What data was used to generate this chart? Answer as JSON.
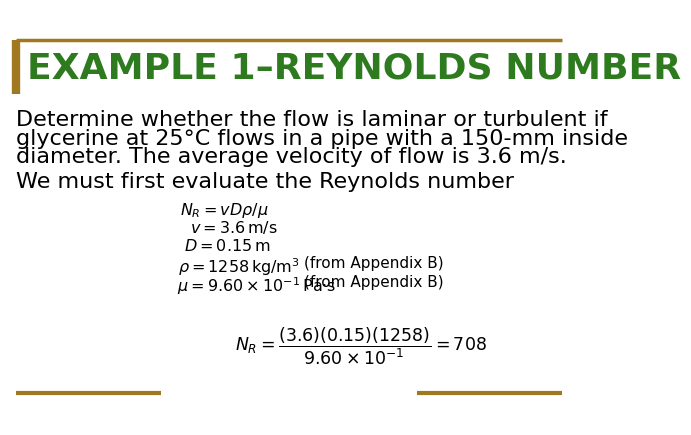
{
  "title": "EXAMPLE 1–REYNOLDS NUMBER",
  "title_color": "#2d7a1f",
  "border_color": "#a07820",
  "bg_color": "#ffffff",
  "text_color": "#000000",
  "body_text1_line1": "Determine whether the flow is laminar or turbulent if",
  "body_text1_line2": "glycerine at 25°C flows in a pipe with a 150-mm inside",
  "body_text1_line3": "diameter. The average velocity of flow is 3.6 m/s.",
  "body_text2": "We must first evaluate the Reynolds number",
  "line_color": "#a07820",
  "title_fontsize": 26,
  "body_fontsize": 16,
  "formula_fontsize": 11.5
}
